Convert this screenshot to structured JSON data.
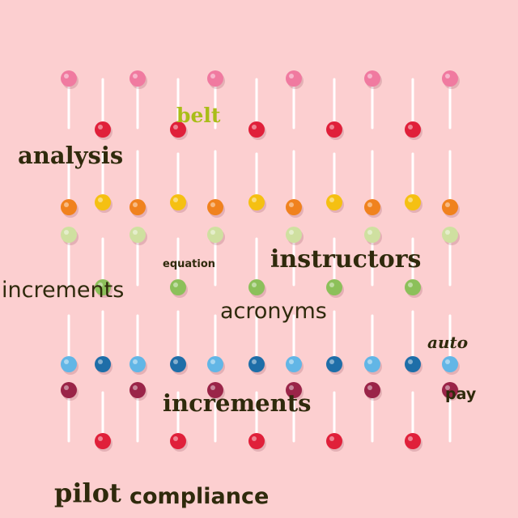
{
  "background_color": "#fccfd0",
  "lollipop_colors": {
    "pink": "#f07aa0",
    "red": "#e0203a",
    "yellow": "#f5c012",
    "orange": "#f0821e",
    "light_green": "#cfe0a0",
    "green": "#8cc05a",
    "blue": "#1e6ea8",
    "light_blue": "#62b6e6",
    "plum": "#9a2448"
  },
  "words": {
    "belt": "belt",
    "analysis": "analysis",
    "equation": "equation",
    "instructors": "instructors",
    "increments_1": "increments",
    "acronyms": "acronyms",
    "auto": "auto",
    "pay": "pay",
    "increments_2": "increments",
    "pilot": "pilot",
    "compliance": "compliance"
  },
  "word_colors": {
    "dark": "#2f2a0c",
    "belt": "#a9bd18"
  }
}
